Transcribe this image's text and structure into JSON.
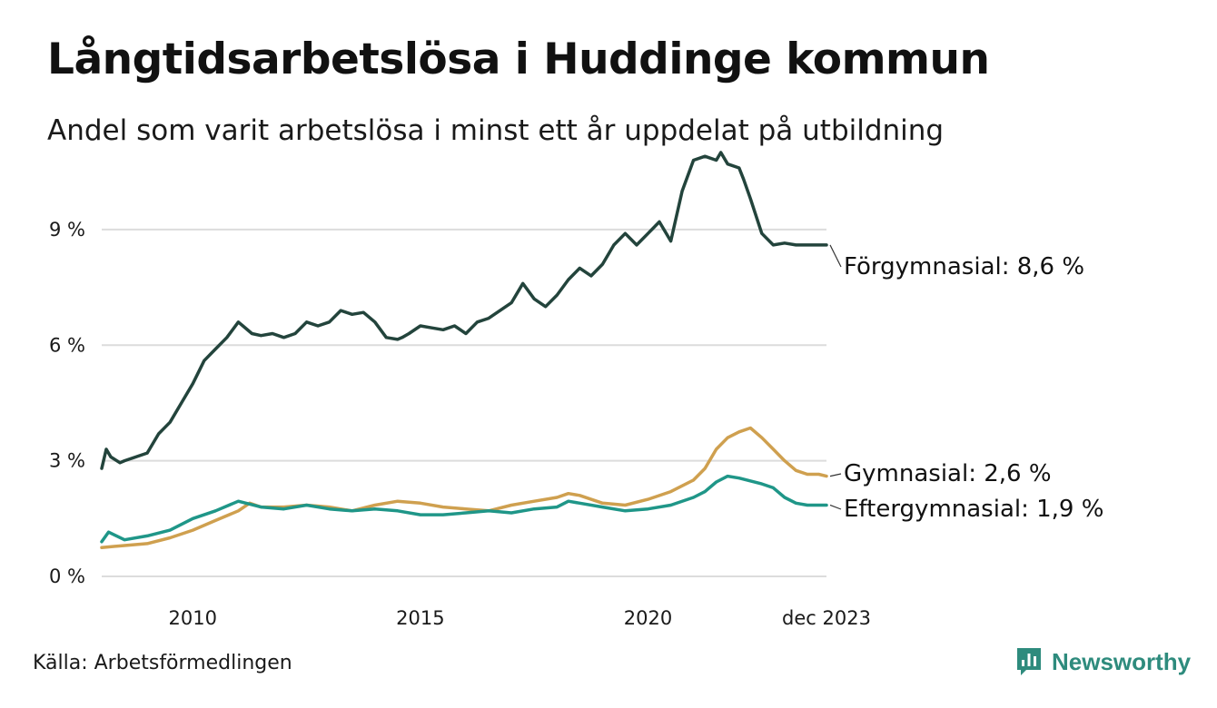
{
  "title": "Långtidsarbetslösa i Huddinge kommun",
  "subtitle": "Andel som varit arbetslösa i minst ett år uppdelat på utbildning",
  "source": "Källa: Arbetsförmedlingen",
  "brand": {
    "name": "Newsworthy",
    "icon": "newsworthy-logo-icon"
  },
  "colors": {
    "forgymnasial": "#23443c",
    "gymnasial": "#cfa04f",
    "eftergymnasial": "#1f9688",
    "grid": "#dcdcdc",
    "brand": "#2e8b7d"
  },
  "chart_data": {
    "type": "line",
    "title": "Långtidsarbetslösa i Huddinge kommun",
    "xlabel": "",
    "ylabel": "",
    "xlim": [
      2008.0,
      2023.92
    ],
    "ylim": [
      0,
      11
    ],
    "y_ticks": [
      0,
      3,
      6,
      9
    ],
    "y_tick_labels": [
      "0 %",
      "3 %",
      "6 %",
      "9 %"
    ],
    "x_ticks": [
      2010,
      2015,
      2020,
      2023.92
    ],
    "x_tick_labels": [
      "2010",
      "2015",
      "2020",
      "dec 2023"
    ],
    "grid": true,
    "series": [
      {
        "name": "Förgymnasial",
        "end_label": "Förgymnasial: 8,6 %",
        "color": "#23443c",
        "x": [
          2008.0,
          2008.1,
          2008.2,
          2008.4,
          2008.5,
          2008.75,
          2009.0,
          2009.25,
          2009.5,
          2009.75,
          2010.0,
          2010.25,
          2010.5,
          2010.75,
          2011.0,
          2011.1,
          2011.3,
          2011.5,
          2011.75,
          2012.0,
          2012.25,
          2012.5,
          2012.75,
          2013.0,
          2013.25,
          2013.5,
          2013.75,
          2014.0,
          2014.25,
          2014.5,
          2014.6,
          2014.75,
          2015.0,
          2015.25,
          2015.5,
          2015.75,
          2016.0,
          2016.25,
          2016.5,
          2016.75,
          2017.0,
          2017.25,
          2017.5,
          2017.75,
          2018.0,
          2018.25,
          2018.5,
          2018.75,
          2019.0,
          2019.25,
          2019.5,
          2019.75,
          2020.0,
          2020.25,
          2020.5,
          2020.75,
          2021.0,
          2021.25,
          2021.5,
          2021.6,
          2021.75,
          2022.0,
          2022.1,
          2022.25,
          2022.5,
          2022.75,
          2023.0,
          2023.25,
          2023.5,
          2023.75,
          2023.92
        ],
        "values": [
          2.8,
          3.3,
          3.1,
          2.95,
          3.0,
          3.1,
          3.2,
          3.7,
          4.0,
          4.5,
          5.0,
          5.6,
          5.9,
          6.2,
          6.6,
          6.5,
          6.3,
          6.25,
          6.3,
          6.2,
          6.3,
          6.6,
          6.5,
          6.6,
          6.9,
          6.8,
          6.85,
          6.6,
          6.2,
          6.15,
          6.2,
          6.3,
          6.5,
          6.45,
          6.4,
          6.5,
          6.3,
          6.6,
          6.7,
          6.9,
          7.1,
          7.6,
          7.2,
          7.0,
          7.3,
          7.7,
          8.0,
          7.8,
          8.1,
          8.6,
          8.9,
          8.6,
          8.9,
          9.2,
          8.7,
          10.0,
          10.8,
          10.9,
          10.8,
          11.0,
          10.7,
          10.6,
          10.3,
          9.8,
          8.9,
          8.6,
          8.65,
          8.6,
          8.6,
          8.6,
          8.6
        ]
      },
      {
        "name": "Gymnasial",
        "end_label": "Gymnasial: 2,6 %",
        "color": "#cfa04f",
        "x": [
          2008.0,
          2008.5,
          2009.0,
          2009.5,
          2010.0,
          2010.5,
          2011.0,
          2011.25,
          2011.5,
          2012.0,
          2012.5,
          2013.0,
          2013.5,
          2014.0,
          2014.5,
          2015.0,
          2015.5,
          2016.0,
          2016.5,
          2017.0,
          2017.5,
          2018.0,
          2018.25,
          2018.5,
          2019.0,
          2019.5,
          2020.0,
          2020.5,
          2021.0,
          2021.25,
          2021.5,
          2021.75,
          2022.0,
          2022.25,
          2022.5,
          2022.75,
          2023.0,
          2023.25,
          2023.5,
          2023.75,
          2023.92
        ],
        "values": [
          0.75,
          0.8,
          0.85,
          1.0,
          1.2,
          1.45,
          1.7,
          1.9,
          1.8,
          1.8,
          1.85,
          1.8,
          1.7,
          1.85,
          1.95,
          1.9,
          1.8,
          1.75,
          1.7,
          1.85,
          1.95,
          2.05,
          2.15,
          2.1,
          1.9,
          1.85,
          2.0,
          2.2,
          2.5,
          2.8,
          3.3,
          3.6,
          3.75,
          3.85,
          3.6,
          3.3,
          3.0,
          2.75,
          2.65,
          2.65,
          2.6
        ]
      },
      {
        "name": "Eftergymnasial",
        "end_label": "Eftergymnasial: 1,9 %",
        "color": "#1f9688",
        "x": [
          2008.0,
          2008.15,
          2008.5,
          2009.0,
          2009.5,
          2010.0,
          2010.5,
          2011.0,
          2011.5,
          2012.0,
          2012.5,
          2013.0,
          2013.5,
          2014.0,
          2014.5,
          2015.0,
          2015.5,
          2016.0,
          2016.5,
          2017.0,
          2017.5,
          2018.0,
          2018.25,
          2018.5,
          2019.0,
          2019.5,
          2020.0,
          2020.5,
          2021.0,
          2021.25,
          2021.5,
          2021.75,
          2022.0,
          2022.5,
          2022.75,
          2023.0,
          2023.25,
          2023.5,
          2023.75,
          2023.92
        ],
        "values": [
          0.9,
          1.15,
          0.95,
          1.05,
          1.2,
          1.5,
          1.7,
          1.95,
          1.8,
          1.75,
          1.85,
          1.75,
          1.7,
          1.75,
          1.7,
          1.6,
          1.6,
          1.65,
          1.7,
          1.65,
          1.75,
          1.8,
          1.95,
          1.9,
          1.8,
          1.7,
          1.75,
          1.85,
          2.05,
          2.2,
          2.45,
          2.6,
          2.55,
          2.4,
          2.3,
          2.05,
          1.9,
          1.85,
          1.85,
          1.85
        ]
      }
    ]
  }
}
